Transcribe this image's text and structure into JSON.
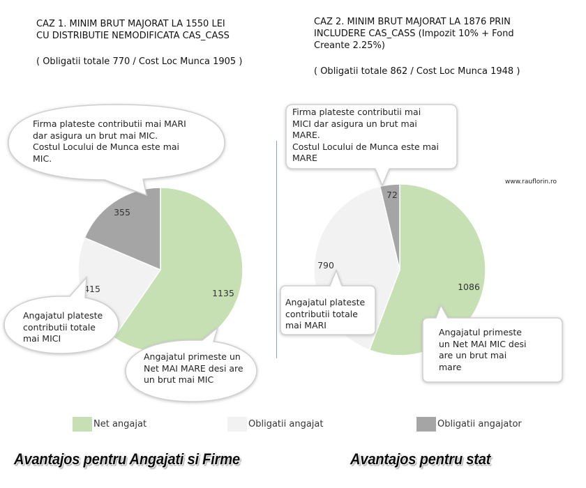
{
  "header_left": {
    "line1": "CAZ 1. MINIM BRUT MAJORAT LA 1550 LEI",
    "line2": "CU DISTRIBUTIE NEMODIFICATA CAS_CASS",
    "obligations": "( Obligatii totale 770 / Cost Loc Munca 1905 )"
  },
  "header_right": {
    "line1": "CAZ 2. MINIM BRUT MAJORAT LA 1876 PRIN",
    "line2": "INCLUDERE CAS_CASS (Impozit 10% + Fond",
    "line3": "Creante 2.25%)",
    "obligations": "( Obligatii totale 862 / Cost Loc Munca 1948 )"
  },
  "watermark": "www.rauflorin.ro",
  "notes_left": {
    "top": [
      "Firma plateste contributii mai MARI",
      "dar asigura un brut mai MIC.",
      "Costul Locului de Munca este mai",
      "MIC."
    ],
    "middle": [
      "Angajatul plateste",
      "contributii totale",
      "mai MICI"
    ],
    "bottom": [
      "Angajatul primeste un",
      "Net MAI MARE desi are",
      "un brut mai MIC"
    ]
  },
  "notes_right": {
    "top": [
      "Firma plateste contributii mai",
      "MICI dar asigura un brut mai",
      "MARE.",
      "Costul Locului de Munca este mai",
      "MARE"
    ],
    "middle": [
      "Angajatul plateste",
      "contributii totale",
      "mai MARI"
    ],
    "bottom": [
      "Angajatul primeste",
      "un Net MAI MIC desi",
      "are un brut mai",
      "mare"
    ]
  },
  "chart_data": [
    {
      "type": "pie",
      "categories": [
        "Net angajat",
        "Obligatii angajat",
        "Obligatii angajator"
      ],
      "values": [
        1135,
        415,
        355
      ],
      "colors": [
        "#c6e0b4",
        "#f2f2f2",
        "#a5a5a5"
      ]
    },
    {
      "type": "pie",
      "categories": [
        "Net angajat",
        "Obligatii angajat",
        "Obligatii angajator"
      ],
      "values": [
        1086,
        790,
        72
      ],
      "colors": [
        "#c6e0b4",
        "#f2f2f2",
        "#a5a5a5"
      ]
    }
  ],
  "legend": [
    {
      "label": "Net angajat",
      "color": "#c6e0b4"
    },
    {
      "label": "Obligatii angajat",
      "color": "#f2f2f2"
    },
    {
      "label": "Obligatii angajator",
      "color": "#a5a5a5"
    }
  ],
  "footer": {
    "left": "Avantajos pentru Angajati si Firme",
    "right": "Avantajos pentru stat"
  }
}
